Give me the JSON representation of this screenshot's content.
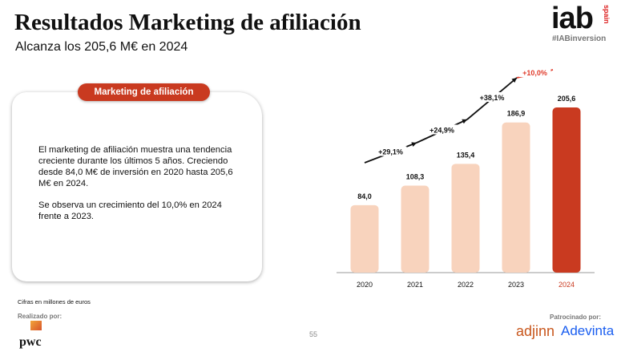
{
  "header": {
    "title": "Resultados Marketing de afiliación",
    "subtitle": "Alcanza los 205,6 M€ en 2024"
  },
  "logo": {
    "brand": "iab",
    "region": "spain",
    "hashtag": "#IABinversion"
  },
  "card": {
    "label": "Marketing de afiliación",
    "paragraph1": "El marketing de afiliación muestra una tendencia creciente durante los últimos 5 años. Creciendo desde 84,0 M€ de inversión en 2020 hasta 205,6 M€ en 2024.",
    "paragraph2": "Se observa un crecimiento del 10,0% en 2024 frente a 2023."
  },
  "footer": {
    "note": "Cifras en millones de euros",
    "made_by": "Realizado por:",
    "made_by_logo": "pwc",
    "page": "55",
    "sponsored": "Patrocinado por:",
    "sponsors": [
      "adjinn",
      "Adevinta"
    ]
  },
  "colors": {
    "bar": "#f8d3bd",
    "highlight": "#c93a20",
    "growth_highlight": "#e03a2a"
  },
  "chart_data": {
    "type": "bar",
    "categories": [
      "2020",
      "2021",
      "2022",
      "2023",
      "2024"
    ],
    "values": [
      84.0,
      108.3,
      135.4,
      186.9,
      205.6
    ],
    "value_labels": [
      "84,0",
      "108,3",
      "135,4",
      "186,9",
      "205,6"
    ],
    "growth_labels": [
      "+29,1%",
      "+24,9%",
      "+38,1%",
      "+10,0%"
    ],
    "highlight_category": "2024",
    "ylim": [
      0,
      205.6
    ],
    "grid": false
  }
}
